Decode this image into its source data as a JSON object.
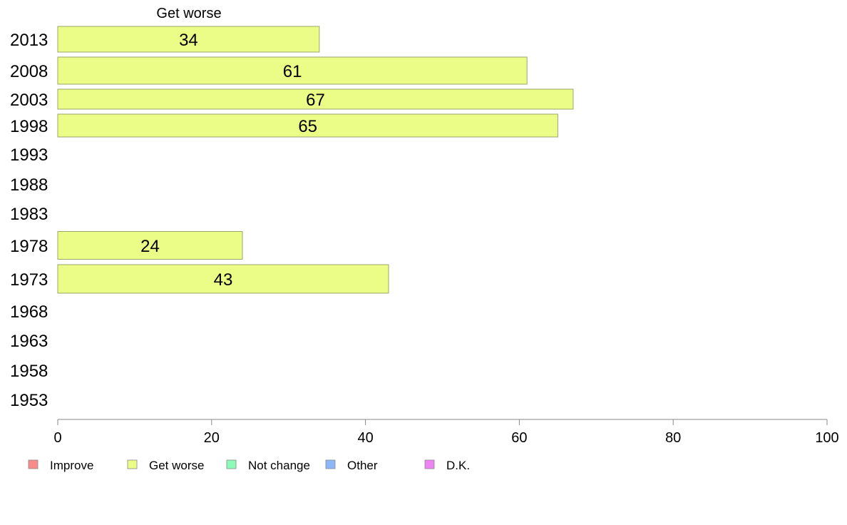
{
  "chart_data": {
    "type": "bar",
    "orientation": "horizontal",
    "panel_title": "Get worse",
    "categories": [
      "2013",
      "2008",
      "2003",
      "1998",
      "1993",
      "1988",
      "1983",
      "1978",
      "1973",
      "1968",
      "1963",
      "1958",
      "1953"
    ],
    "series": [
      {
        "name": "Get worse",
        "values": [
          34,
          61,
          67,
          65,
          null,
          null,
          null,
          24,
          43,
          null,
          null,
          null,
          null
        ]
      }
    ],
    "xlim": [
      0,
      100
    ],
    "xticks": [
      "0",
      "20",
      "40",
      "60",
      "80",
      "100"
    ],
    "grid": false,
    "legend_position": "bottom-left",
    "legend": [
      {
        "label": "Improve",
        "color": "#f88c8c"
      },
      {
        "label": "Get worse",
        "color": "#ecfd87"
      },
      {
        "label": "Not change",
        "color": "#8cfab8"
      },
      {
        "label": "Other",
        "color": "#8cb8f8"
      },
      {
        "label": "D.K.",
        "color": "#ee84f4"
      }
    ],
    "colors": {
      "bar_fill": "#ecfd87",
      "bar_stroke": "#9aa86a",
      "axis": "#888888"
    }
  }
}
